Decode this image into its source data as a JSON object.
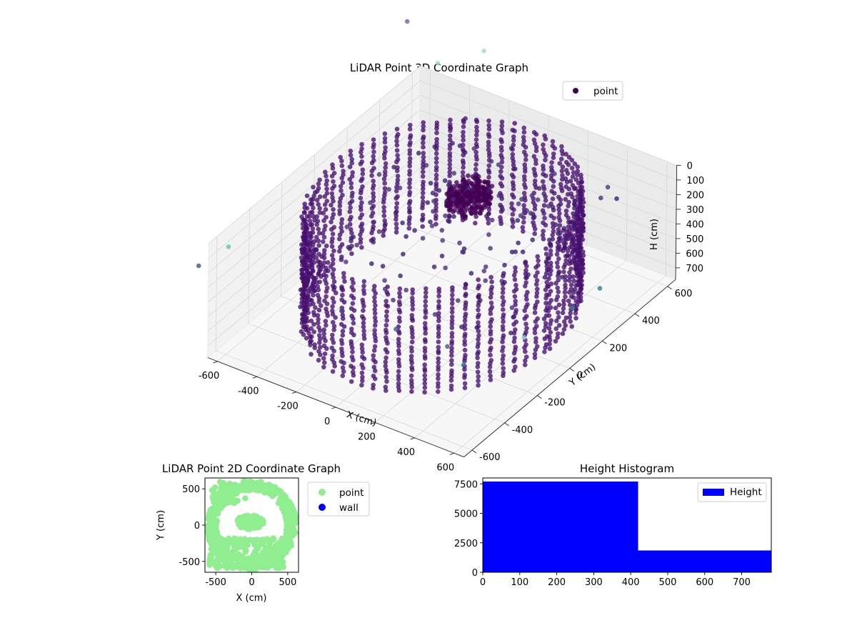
{
  "chart_data": [
    {
      "type": "scatter",
      "title": "LiDAR Point 3D Coordinate Graph",
      "xlabel": "X (cm)",
      "ylabel": "Y (cm)",
      "zlabel": "H (cm)",
      "xticks": [
        "-600",
        "-400",
        "-200",
        "0",
        "200",
        "400",
        "600"
      ],
      "yticks": [
        "-600",
        "-400",
        "-200",
        "0",
        "200",
        "400",
        "600"
      ],
      "zticks": [
        "0",
        "100",
        "200",
        "300",
        "400",
        "500",
        "600",
        "700"
      ],
      "xlim": [
        -650,
        650
      ],
      "ylim": [
        -650,
        650
      ],
      "zlim": [
        0,
        780
      ],
      "z_axis_inverted": true,
      "colormap": "viridis",
      "legend": [
        "point"
      ],
      "legend_position": "upper-right",
      "grid": true,
      "series": [
        {
          "name": "point",
          "description": "points forming a ring-shaped wall of radius ~550 cm spanning heights 0-700 cm, plus an inner cluster and scattered outliers"
        }
      ]
    },
    {
      "type": "scatter",
      "title": "LiDAR Point 2D Coordinate Graph",
      "xlabel": "X (cm)",
      "ylabel": "Y (cm)",
      "xticks": [
        "-500",
        "0",
        "500"
      ],
      "yticks": [
        "-500",
        "0",
        "500"
      ],
      "xlim": [
        -650,
        650
      ],
      "ylim": [
        -650,
        650
      ],
      "legend": [
        "point",
        "wall"
      ],
      "legend_position": "outside-right",
      "series": [
        {
          "name": "point",
          "color": "#90ee90"
        },
        {
          "name": "wall",
          "color": "#0000ff"
        }
      ]
    },
    {
      "type": "bar",
      "title": "Height Histogram",
      "xlabel": "",
      "ylabel": "",
      "xticks": [
        "0",
        "100",
        "200",
        "300",
        "400",
        "500",
        "600",
        "700"
      ],
      "yticks": [
        "0",
        "2500",
        "5000",
        "7500"
      ],
      "xlim": [
        0,
        780
      ],
      "ylim": [
        0,
        8000
      ],
      "bins": [
        {
          "x0": 0,
          "x1": 420,
          "count": 7700
        },
        {
          "x0": 420,
          "x1": 780,
          "count": 1850
        }
      ],
      "color": "#0000ff",
      "legend": [
        "Height"
      ],
      "legend_position": "upper-right"
    }
  ]
}
